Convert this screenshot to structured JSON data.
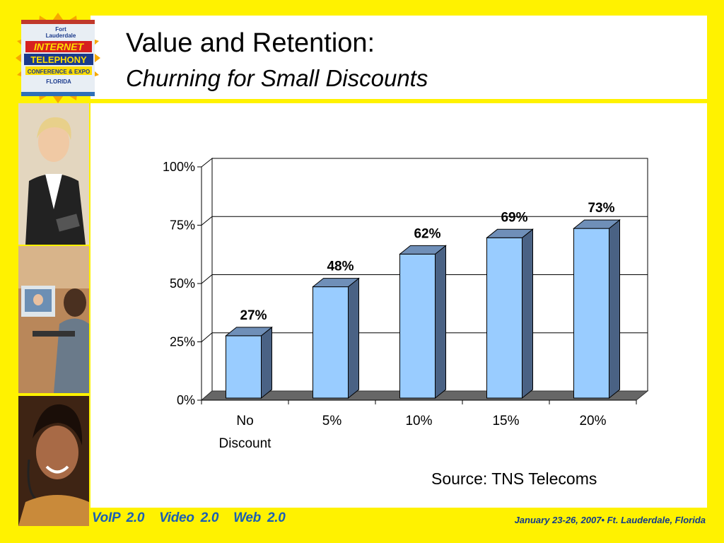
{
  "slide": {
    "title": "Value and Retention:",
    "subtitle": "Churning for Small Discounts",
    "source": "Source: TNS Telecoms",
    "footer_items": [
      "VoIP 2.0",
      "Video 2.0",
      "Web 2.0"
    ],
    "footer_date": "January 23-26, 2007• Ft. Lauderdale, Florida",
    "logo_lines": [
      "Fort",
      "Lauderdale",
      "INTERNET",
      "TELEPHONY",
      "CONFERENCE & EXPO",
      "FLORIDA"
    ],
    "colors": {
      "background": "#fff200",
      "bar_front": "#99ccff",
      "bar_side": "#4a6284",
      "bar_top": "#6f8fb8",
      "floor": "#666666",
      "footer_text": "#1a5fb4"
    }
  },
  "chart_data": {
    "type": "bar",
    "categories": [
      "No Discount",
      "5%",
      "10%",
      "15%",
      "20%"
    ],
    "category_lines": [
      [
        "No",
        "Discount"
      ],
      [
        "5%"
      ],
      [
        "10%"
      ],
      [
        "15%"
      ],
      [
        "20%"
      ]
    ],
    "values": [
      27,
      48,
      62,
      69,
      73
    ],
    "value_labels": [
      "27%",
      "48%",
      "62%",
      "69%",
      "73%"
    ],
    "yticks": [
      "0%",
      "25%",
      "50%",
      "75%",
      "100%"
    ],
    "ylim": [
      0,
      100
    ],
    "grid": true,
    "style": "3d-bar"
  }
}
